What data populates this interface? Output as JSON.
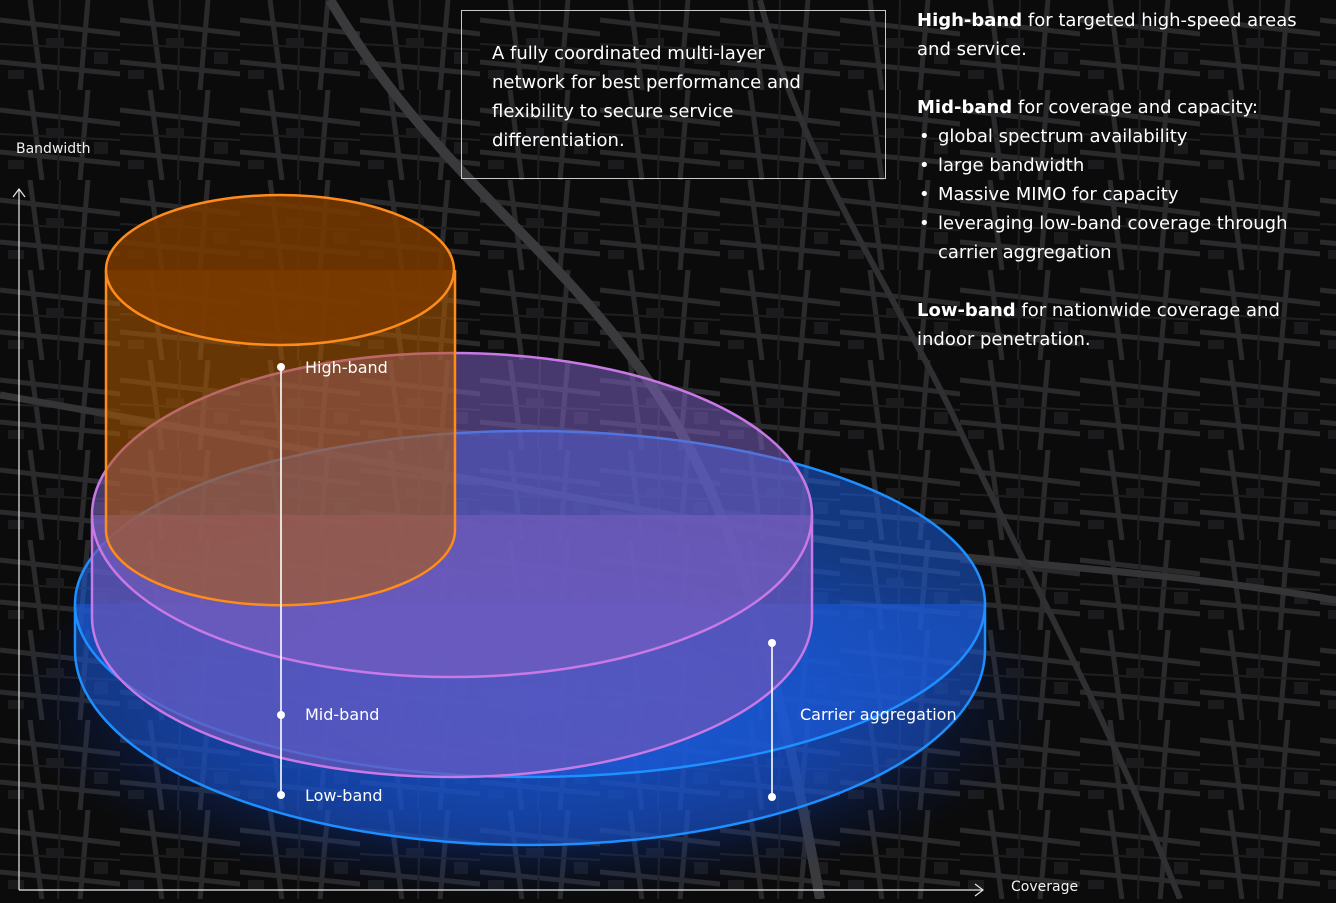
{
  "axes": {
    "y_label": "Bandwidth",
    "x_label": "Coverage"
  },
  "intro": {
    "text": "A fully coordinated multi-layer network for best performance and flexibility to secure service differentiation."
  },
  "layers": [
    {
      "name": "High-band",
      "color": "#ff8c1a"
    },
    {
      "name": "Mid-band",
      "color": "#c879e6"
    },
    {
      "name": "Low-band",
      "color": "#1e8fff"
    }
  ],
  "carrier_aggregation_label": "Carrier aggregation",
  "info": {
    "high": {
      "title": "High-band",
      "text": "for targeted high-speed areas and service."
    },
    "mid": {
      "title": "Mid-band",
      "text": "for coverage and capacity:",
      "bullets": [
        "global spectrum availability",
        "large bandwidth",
        "Massive MIMO for capacity",
        "leveraging low-band coverage through carrier aggregation"
      ]
    },
    "low": {
      "title": "Low-band",
      "text": "for nationwide coverage and indoor penetration."
    }
  }
}
